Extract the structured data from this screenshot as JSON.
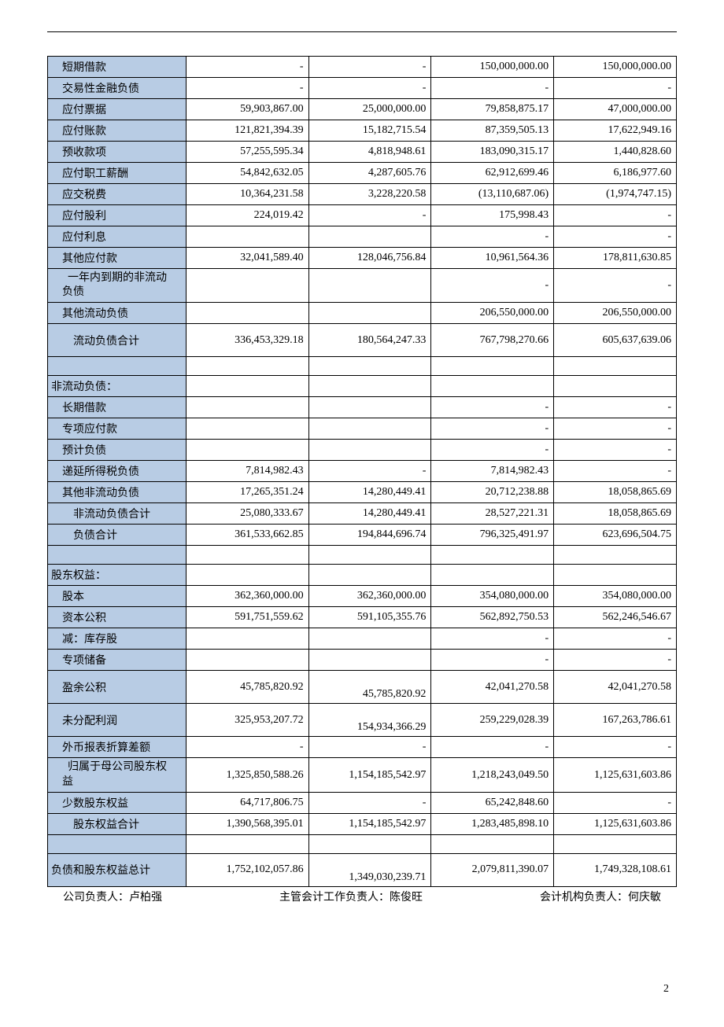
{
  "colors": {
    "label_bg": "#b8cce4",
    "border": "#000000",
    "page_bg": "#ffffff"
  },
  "table": {
    "rows": [
      {
        "label": "短期借款",
        "indent": 1,
        "c1": "-",
        "c2": "-",
        "c3": "150,000,000.00",
        "c4": "150,000,000.00"
      },
      {
        "label": "交易性金融负债",
        "indent": 1,
        "c1": "-",
        "c2": "-",
        "c3": "-",
        "c4": "-"
      },
      {
        "label": "应付票据",
        "indent": 1,
        "c1": "59,903,867.00",
        "c2": "25,000,000.00",
        "c3": "79,858,875.17",
        "c4": "47,000,000.00"
      },
      {
        "label": "应付账款",
        "indent": 1,
        "c1": "121,821,394.39",
        "c2": "15,182,715.54",
        "c3": "87,359,505.13",
        "c4": "17,622,949.16"
      },
      {
        "label": "预收款项",
        "indent": 1,
        "c1": "57,255,595.34",
        "c2": "4,818,948.61",
        "c3": "183,090,315.17",
        "c4": "1,440,828.60"
      },
      {
        "label": "应付职工薪酬",
        "indent": 1,
        "c1": "54,842,632.05",
        "c2": "4,287,605.76",
        "c3": "62,912,699.46",
        "c4": "6,186,977.60"
      },
      {
        "label": "应交税费",
        "indent": 1,
        "c1": "10,364,231.58",
        "c2": "3,228,220.58",
        "c3": "(13,110,687.06)",
        "c4": "(1,974,747.15)"
      },
      {
        "label": "应付股利",
        "indent": 1,
        "c1": "224,019.42",
        "c2": "-",
        "c3": "175,998.43",
        "c4": "-"
      },
      {
        "label": "应付利息",
        "indent": 1,
        "c1": "",
        "c2": "",
        "c3": "-",
        "c4": "-"
      },
      {
        "label": "其他应付款",
        "indent": 1,
        "c1": "32,041,589.40",
        "c2": "128,046,756.84",
        "c3": "10,961,564.36",
        "c4": "178,811,630.85"
      },
      {
        "label": "一年内到期的非流动负债",
        "indent": 1,
        "twoline": true,
        "c1": "",
        "c2": "",
        "c3": "-",
        "c4": "-"
      },
      {
        "label": "其他流动负债",
        "indent": 1,
        "c1": "",
        "c2": "",
        "c3": "206,550,000.00",
        "c4": "206,550,000.00"
      },
      {
        "label": "流动负债合计",
        "indent": 2,
        "tall": true,
        "c1": "336,453,329.18",
        "c2": "180,564,247.33",
        "c3": "767,798,270.66",
        "c4": "605,637,639.06"
      },
      {
        "label": "",
        "blank": true
      },
      {
        "label": "非流动负债：",
        "indent": 0,
        "c1": "",
        "c2": "",
        "c3": "",
        "c4": ""
      },
      {
        "label": "长期借款",
        "indent": 1,
        "c1": "",
        "c2": "",
        "c3": "-",
        "c4": "-"
      },
      {
        "label": "专项应付款",
        "indent": 1,
        "c1": "",
        "c2": "",
        "c3": "-",
        "c4": "-"
      },
      {
        "label": "预计负债",
        "indent": 1,
        "c1": "",
        "c2": "",
        "c3": "-",
        "c4": "-"
      },
      {
        "label": "递延所得税负债",
        "indent": 1,
        "c1": "7,814,982.43",
        "c2": "-",
        "c3": "7,814,982.43",
        "c4": "-"
      },
      {
        "label": "其他非流动负债",
        "indent": 1,
        "c1": "17,265,351.24",
        "c2": "14,280,449.41",
        "c3": "20,712,238.88",
        "c4": "18,058,865.69"
      },
      {
        "label": "非流动负债合计",
        "indent": 2,
        "c1": "25,080,333.67",
        "c2": "14,280,449.41",
        "c3": "28,527,221.31",
        "c4": "18,058,865.69"
      },
      {
        "label": "负债合计",
        "indent": 2,
        "c1": "361,533,662.85",
        "c2": "194,844,696.74",
        "c3": "796,325,491.97",
        "c4": "623,696,504.75"
      },
      {
        "label": "",
        "blank": true
      },
      {
        "label": "股东权益：",
        "indent": 0,
        "c1": "",
        "c2": "",
        "c3": "",
        "c4": ""
      },
      {
        "label": "股本",
        "indent": 1,
        "c1": "362,360,000.00",
        "c2": "362,360,000.00",
        "c3": "354,080,000.00",
        "c4": "354,080,000.00"
      },
      {
        "label": "资本公积",
        "indent": 1,
        "c1": "591,751,559.62",
        "c2": "591,105,355.76",
        "c3": "562,892,750.53",
        "c4": "562,246,546.67"
      },
      {
        "label": "减：库存股",
        "indent": 1,
        "c1": "",
        "c2": "",
        "c3": "-",
        "c4": "-"
      },
      {
        "label": "专项储备",
        "indent": 1,
        "c1": "",
        "c2": "",
        "c3": "-",
        "c4": "-"
      },
      {
        "label": "盈余公积",
        "indent": 1,
        "tall": true,
        "c1": "45,785,820.92",
        "c2": "45,785,820.92",
        "c2bottom": true,
        "c3": "42,041,270.58",
        "c4": "42,041,270.58"
      },
      {
        "label": "未分配利润",
        "indent": 1,
        "tall": true,
        "c1": "325,953,207.72",
        "c2": "154,934,366.29",
        "c2bottom": true,
        "c3": "259,229,028.39",
        "c4": "167,263,786.61"
      },
      {
        "label": "外币报表折算差额",
        "indent": 1,
        "c1": "-",
        "c2": "-",
        "c3": "-",
        "c4": "-"
      },
      {
        "label": "归属于母公司股东权益",
        "indent": 1,
        "twoline": true,
        "c1": "1,325,850,588.26",
        "c2": "1,154,185,542.97",
        "c3": "1,218,243,049.50",
        "c4": "1,125,631,603.86"
      },
      {
        "label": "少数股东权益",
        "indent": 1,
        "c1": "64,717,806.75",
        "c2": "-",
        "c3": "65,242,848.60",
        "c4": "-"
      },
      {
        "label": "股东权益合计",
        "indent": 2,
        "c1": "1,390,568,395.01",
        "c2": "1,154,185,542.97",
        "c3": "1,283,485,898.10",
        "c4": "1,125,631,603.86"
      },
      {
        "label": "",
        "blank": true
      },
      {
        "label": "负债和股东权益总计",
        "indent": 0,
        "tall": true,
        "c1": "1,752,102,057.86",
        "c2": "1,349,030,239.71",
        "c2bottom": true,
        "c3": "2,079,811,390.07",
        "c4": "1,749,328,108.61"
      }
    ]
  },
  "footer": {
    "s1": "公司负责人：卢柏强",
    "s2": "主管会计工作负责人：陈俊旺",
    "s3": "会计机构负责人：何庆敏"
  },
  "page_num": "2"
}
